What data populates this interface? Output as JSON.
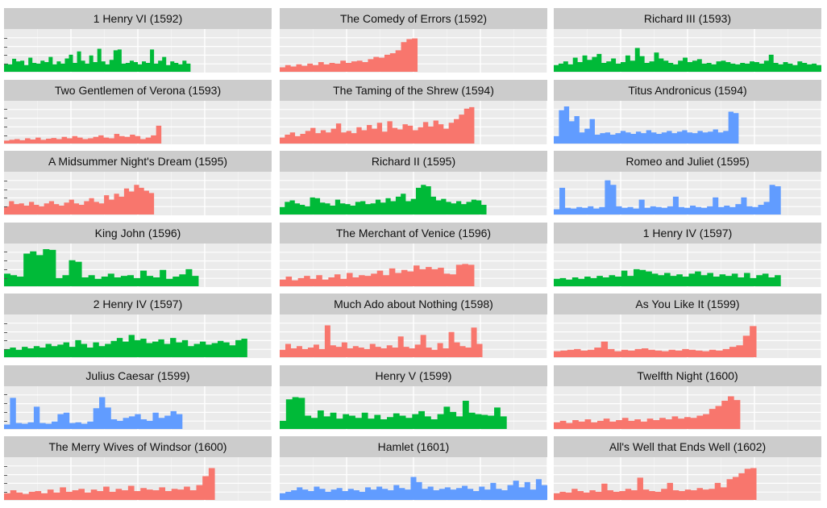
{
  "chart_data": {
    "type": "area",
    "layout": "facet-grid-3-columns",
    "grid": true,
    "colors": {
      "red": "#f8766d",
      "green": "#00ba38",
      "blue": "#619cff",
      "panel_bg": "#ebebeb",
      "strip_bg": "#cccccc",
      "gridline": "#ffffff"
    },
    "xlim": [
      0,
      3300
    ],
    "ylim": [
      0,
      100
    ],
    "panels": [
      {
        "title": "1 Henry VI (1592)",
        "color": "#00ba38",
        "length": 2300,
        "values": [
          22,
          20,
          35,
          28,
          30,
          18,
          38,
          24,
          22,
          30,
          26,
          40,
          20,
          28,
          22,
          36,
          46,
          24,
          55,
          30,
          22,
          44,
          26,
          62,
          28,
          20,
          32,
          58,
          60,
          22,
          24,
          30,
          26,
          20,
          28,
          24,
          60,
          22,
          30,
          40,
          18,
          28,
          24,
          20,
          30,
          22
        ]
      },
      {
        "title": "The Comedy of Errors (1592)",
        "color": "#f8766d",
        "length": 1700,
        "values": [
          12,
          18,
          14,
          20,
          16,
          22,
          18,
          26,
          20,
          24,
          22,
          30,
          24,
          28,
          30,
          26,
          34,
          40,
          38,
          46,
          50,
          58,
          80,
          88,
          90
        ]
      },
      {
        "title": "Richard III (1593)",
        "color": "#00ba38",
        "length": 3300,
        "values": [
          18,
          22,
          28,
          20,
          38,
          26,
          44,
          32,
          40,
          48,
          24,
          28,
          36,
          22,
          26,
          44,
          30,
          64,
          42,
          24,
          28,
          52,
          36,
          30,
          24,
          20,
          30,
          38,
          26,
          30,
          34,
          22,
          24,
          20,
          28,
          30,
          26,
          22,
          20,
          24,
          22,
          28,
          26,
          22,
          30,
          46,
          24,
          20,
          26,
          22,
          18,
          28,
          24,
          20,
          22,
          18
        ]
      },
      {
        "title": "Two Gentlemen of Verona (1593)",
        "color": "#f8766d",
        "length": 1940,
        "values": [
          8,
          10,
          12,
          9,
          14,
          11,
          16,
          10,
          13,
          15,
          12,
          18,
          14,
          20,
          16,
          12,
          14,
          18,
          22,
          16,
          14,
          26,
          20,
          18,
          24,
          20,
          12,
          16,
          22,
          48
        ]
      },
      {
        "title": "The Taming of the Shrew (1594)",
        "color": "#f8766d",
        "length": 2400,
        "values": [
          16,
          24,
          30,
          20,
          26,
          34,
          42,
          28,
          36,
          30,
          40,
          54,
          30,
          34,
          28,
          44,
          36,
          50,
          40,
          56,
          32,
          60,
          42,
          38,
          52,
          48,
          36,
          44,
          58,
          46,
          62,
          52,
          40,
          56,
          66,
          78,
          94,
          98
        ]
      },
      {
        "title": "Titus Andronicus (1594)",
        "color": "#619cff",
        "length": 2280,
        "values": [
          20,
          90,
          100,
          60,
          74,
          30,
          40,
          66,
          24,
          28,
          30,
          24,
          28,
          34,
          30,
          26,
          32,
          28,
          36,
          30,
          26,
          30,
          34,
          28,
          32,
          36,
          30,
          28,
          34,
          30,
          32,
          38,
          30,
          34,
          86,
          82
        ]
      },
      {
        "title": "A Midsummer Night's Dream (1595)",
        "color": "#f8766d",
        "length": 1850,
        "values": [
          22,
          36,
          28,
          30,
          24,
          34,
          26,
          22,
          30,
          36,
          28,
          24,
          32,
          40,
          30,
          26,
          36,
          44,
          34,
          30,
          52,
          40,
          56,
          48,
          70,
          62,
          80,
          72,
          64,
          58
        ]
      },
      {
        "title": "Richard II (1595)",
        "color": "#00ba38",
        "length": 2550,
        "values": [
          20,
          34,
          38,
          30,
          26,
          22,
          46,
          44,
          32,
          30,
          24,
          40,
          30,
          28,
          24,
          34,
          36,
          28,
          30,
          40,
          32,
          44,
          36,
          48,
          56,
          36,
          42,
          72,
          80,
          76,
          48,
          38,
          42,
          34,
          30,
          36,
          28,
          34,
          40,
          38,
          26
        ]
      },
      {
        "title": "Romeo and Juliet (1595)",
        "color": "#619cff",
        "length": 2800,
        "values": [
          14,
          72,
          18,
          16,
          20,
          18,
          22,
          16,
          20,
          92,
          80,
          22,
          18,
          20,
          16,
          40,
          18,
          22,
          20,
          18,
          22,
          48,
          20,
          18,
          24,
          20,
          18,
          22,
          46,
          20,
          24,
          20,
          28,
          46,
          22,
          20,
          26,
          34,
          80,
          76
        ]
      },
      {
        "title": "King John (1596)",
        "color": "#00ba38",
        "length": 2400,
        "values": [
          34,
          30,
          26,
          88,
          94,
          84,
          100,
          98,
          22,
          30,
          70,
          66,
          24,
          30,
          20,
          26,
          34,
          24,
          28,
          30,
          22,
          42,
          28,
          24,
          44,
          20,
          26,
          32,
          46,
          28
        ]
      },
      {
        "title": "The Merchant of Venice (1596)",
        "color": "#f8766d",
        "length": 2400,
        "values": [
          18,
          26,
          16,
          22,
          28,
          20,
          30,
          18,
          24,
          32,
          20,
          36,
          24,
          30,
          28,
          34,
          42,
          30,
          48,
          36,
          44,
          40,
          56,
          46,
          52,
          46,
          50,
          34,
          32,
          58,
          60,
          58
        ]
      },
      {
        "title": "1 Henry IV (1597)",
        "color": "#00ba38",
        "length": 2800,
        "values": [
          20,
          22,
          18,
          24,
          20,
          26,
          22,
          28,
          24,
          30,
          26,
          42,
          28,
          46,
          44,
          40,
          34,
          30,
          36,
          28,
          32,
          26,
          34,
          40,
          30,
          36,
          26,
          32,
          28,
          34,
          24,
          36,
          22,
          30,
          34,
          24,
          30
        ]
      },
      {
        "title": "2 Henry IV (1597)",
        "color": "#00ba38",
        "length": 3000,
        "values": [
          22,
          26,
          20,
          28,
          24,
          30,
          26,
          36,
          30,
          34,
          40,
          28,
          46,
          36,
          26,
          40,
          30,
          36,
          44,
          52,
          42,
          60,
          46,
          50,
          38,
          42,
          48,
          36,
          52,
          40,
          46,
          30,
          36,
          42,
          34,
          38,
          44,
          40,
          32,
          46,
          50
        ]
      },
      {
        "title": "Much Ado about Nothing (1598)",
        "color": "#f8766d",
        "length": 2500,
        "values": [
          20,
          36,
          24,
          30,
          22,
          26,
          34,
          22,
          86,
          32,
          28,
          40,
          24,
          30,
          26,
          22,
          36,
          28,
          24,
          32,
          26,
          56,
          28,
          24,
          34,
          60,
          26,
          20,
          38,
          24,
          68,
          40,
          30,
          26,
          80,
          36
        ]
      },
      {
        "title": "As You Like It (1599)",
        "color": "#f8766d",
        "length": 2500,
        "values": [
          16,
          18,
          20,
          22,
          18,
          20,
          26,
          42,
          22,
          16,
          20,
          18,
          22,
          24,
          20,
          18,
          16,
          20,
          18,
          22,
          20,
          18,
          16,
          20,
          18,
          22,
          28,
          32,
          58,
          84
        ]
      },
      {
        "title": "Julius Caesar (1599)",
        "color": "#619cff",
        "length": 2200,
        "values": [
          12,
          84,
          16,
          14,
          18,
          60,
          16,
          14,
          20,
          40,
          44,
          16,
          18,
          14,
          20,
          56,
          86,
          58,
          26,
          22,
          30,
          34,
          40,
          26,
          22,
          44,
          30,
          36,
          48,
          40
        ]
      },
      {
        "title": "Henry V (1599)",
        "color": "#00ba38",
        "length": 2800,
        "values": [
          22,
          80,
          86,
          84,
          36,
          30,
          50,
          34,
          44,
          28,
          40,
          36,
          30,
          44,
          28,
          38,
          26,
          32,
          42,
          36,
          30,
          40,
          48,
          34,
          26,
          40,
          60,
          46,
          34,
          76,
          44,
          40,
          38,
          36,
          58,
          34
        ]
      },
      {
        "title": "Twelfth Night (1600)",
        "color": "#f8766d",
        "length": 2300,
        "values": [
          18,
          22,
          16,
          24,
          20,
          26,
          18,
          22,
          28,
          20,
          24,
          30,
          22,
          26,
          20,
          28,
          24,
          30,
          26,
          34,
          28,
          32,
          30,
          36,
          40,
          54,
          62,
          76,
          88,
          78
        ]
      },
      {
        "title": "The Merry Wives of Windsor (1600)",
        "color": "#f8766d",
        "length": 2600,
        "values": [
          18,
          26,
          20,
          16,
          22,
          24,
          18,
          28,
          20,
          34,
          22,
          26,
          30,
          20,
          28,
          24,
          36,
          22,
          30,
          26,
          38,
          24,
          32,
          28,
          26,
          34,
          24,
          30,
          28,
          36,
          26,
          40,
          64,
          86
        ]
      },
      {
        "title": "Hamlet (1601)",
        "color": "#619cff",
        "length": 3300,
        "values": [
          18,
          22,
          26,
          34,
          28,
          24,
          36,
          30,
          22,
          28,
          32,
          24,
          30,
          26,
          22,
          34,
          28,
          36,
          30,
          26,
          40,
          32,
          28,
          62,
          48,
          30,
          36,
          26,
          30,
          34,
          28,
          32,
          38,
          30,
          24,
          36,
          28,
          46,
          30,
          26,
          40,
          52,
          34,
          48,
          28,
          56,
          40
        ]
      },
      {
        "title": "All's Well that Ends Well (1602)",
        "color": "#f8766d",
        "length": 2500,
        "values": [
          18,
          22,
          20,
          30,
          24,
          20,
          26,
          22,
          44,
          26,
          22,
          24,
          30,
          26,
          60,
          28,
          24,
          22,
          30,
          46,
          26,
          24,
          28,
          26,
          32,
          28,
          30,
          46,
          34,
          56,
          62,
          72,
          84,
          86
        ]
      }
    ]
  }
}
